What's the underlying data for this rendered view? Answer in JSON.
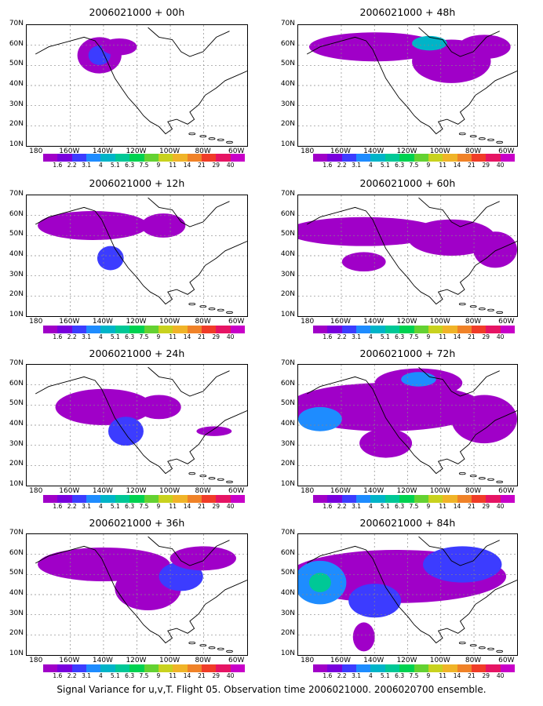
{
  "panels": [
    {
      "title": "2006021000 + 00h"
    },
    {
      "title": "2006021000 + 48h"
    },
    {
      "title": "2006021000 + 12h"
    },
    {
      "title": "2006021000 + 60h"
    },
    {
      "title": "2006021000 + 24h"
    },
    {
      "title": "2006021000 + 72h"
    },
    {
      "title": "2006021000 + 36h"
    },
    {
      "title": "2006021000 + 84h"
    }
  ],
  "y_labels": [
    "70N",
    "60N",
    "50N",
    "40N",
    "30N",
    "20N",
    "10N"
  ],
  "x_labels": [
    "180",
    "160W",
    "140W",
    "120W",
    "100W",
    "80W",
    "60W"
  ],
  "colorbar": {
    "labels": [
      "1.6",
      "2.2",
      "3.1",
      "4",
      "5.1",
      "6.3",
      "7.5",
      "9",
      "11",
      "14",
      "21",
      "29",
      "40"
    ],
    "colors": [
      "#a000c8",
      "#7800dc",
      "#3c3cff",
      "#1e8cff",
      "#00b4c8",
      "#00c896",
      "#00d250",
      "#64d232",
      "#c8d21e",
      "#f0b428",
      "#f08228",
      "#f03c28",
      "#e61464",
      "#c800c8"
    ]
  },
  "footer": "Signal Variance for u,v,T. Flight 05. Observation time 2006021000. 2006020700 ensemble."
}
